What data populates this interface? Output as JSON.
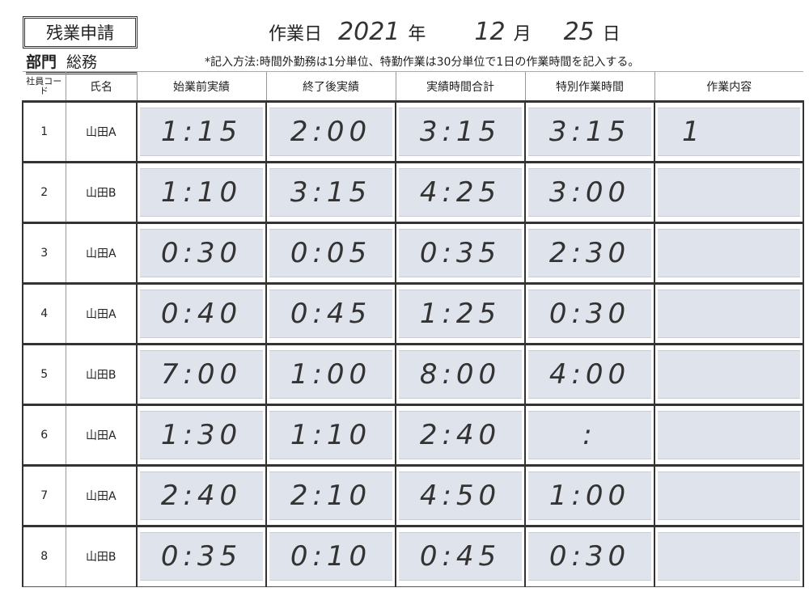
{
  "form": {
    "title": "残業申請",
    "date_label": "作業日",
    "year": "2021",
    "year_unit": "年",
    "month": "12",
    "month_unit": "月",
    "day": "25",
    "day_unit": "日",
    "dept_label": "部門",
    "dept_value": "総務",
    "note": "*記入方法:時間外勤務は1分単位、特勤作業は30分単位で1日の作業時間を記入する。"
  },
  "columns": [
    "社員コード",
    "氏名",
    "始業前実績",
    "終了後実績",
    "実績時間合計",
    "特別作業時間",
    "作業内容"
  ],
  "rows": [
    {
      "code": "1",
      "name": "山田A",
      "before": "1:15",
      "after": "2:00",
      "total": "3:15",
      "special": "3:15",
      "content": "1"
    },
    {
      "code": "2",
      "name": "山田B",
      "before": "1:10",
      "after": "3:15",
      "total": "4:25",
      "special": "3:00",
      "content": ""
    },
    {
      "code": "3",
      "name": "山田A",
      "before": "0:30",
      "after": "0:05",
      "total": "0:35",
      "special": "2:30",
      "content": ""
    },
    {
      "code": "4",
      "name": "山田A",
      "before": "0:40",
      "after": "0:45",
      "total": "1:25",
      "special": "0:30",
      "content": ""
    },
    {
      "code": "5",
      "name": "山田B",
      "before": "7:00",
      "after": "1:00",
      "total": "8:00",
      "special": "4:00",
      "content": ""
    },
    {
      "code": "6",
      "name": "山田A",
      "before": "1:30",
      "after": "1:10",
      "total": "2:40",
      "special": ":",
      "content": ""
    },
    {
      "code": "7",
      "name": "山田A",
      "before": "2:40",
      "after": "2:10",
      "total": "4:50",
      "special": "1:00",
      "content": ""
    },
    {
      "code": "8",
      "name": "山田B",
      "before": "0:35",
      "after": "0:10",
      "total": "0:45",
      "special": "0:30",
      "content": ""
    }
  ]
}
